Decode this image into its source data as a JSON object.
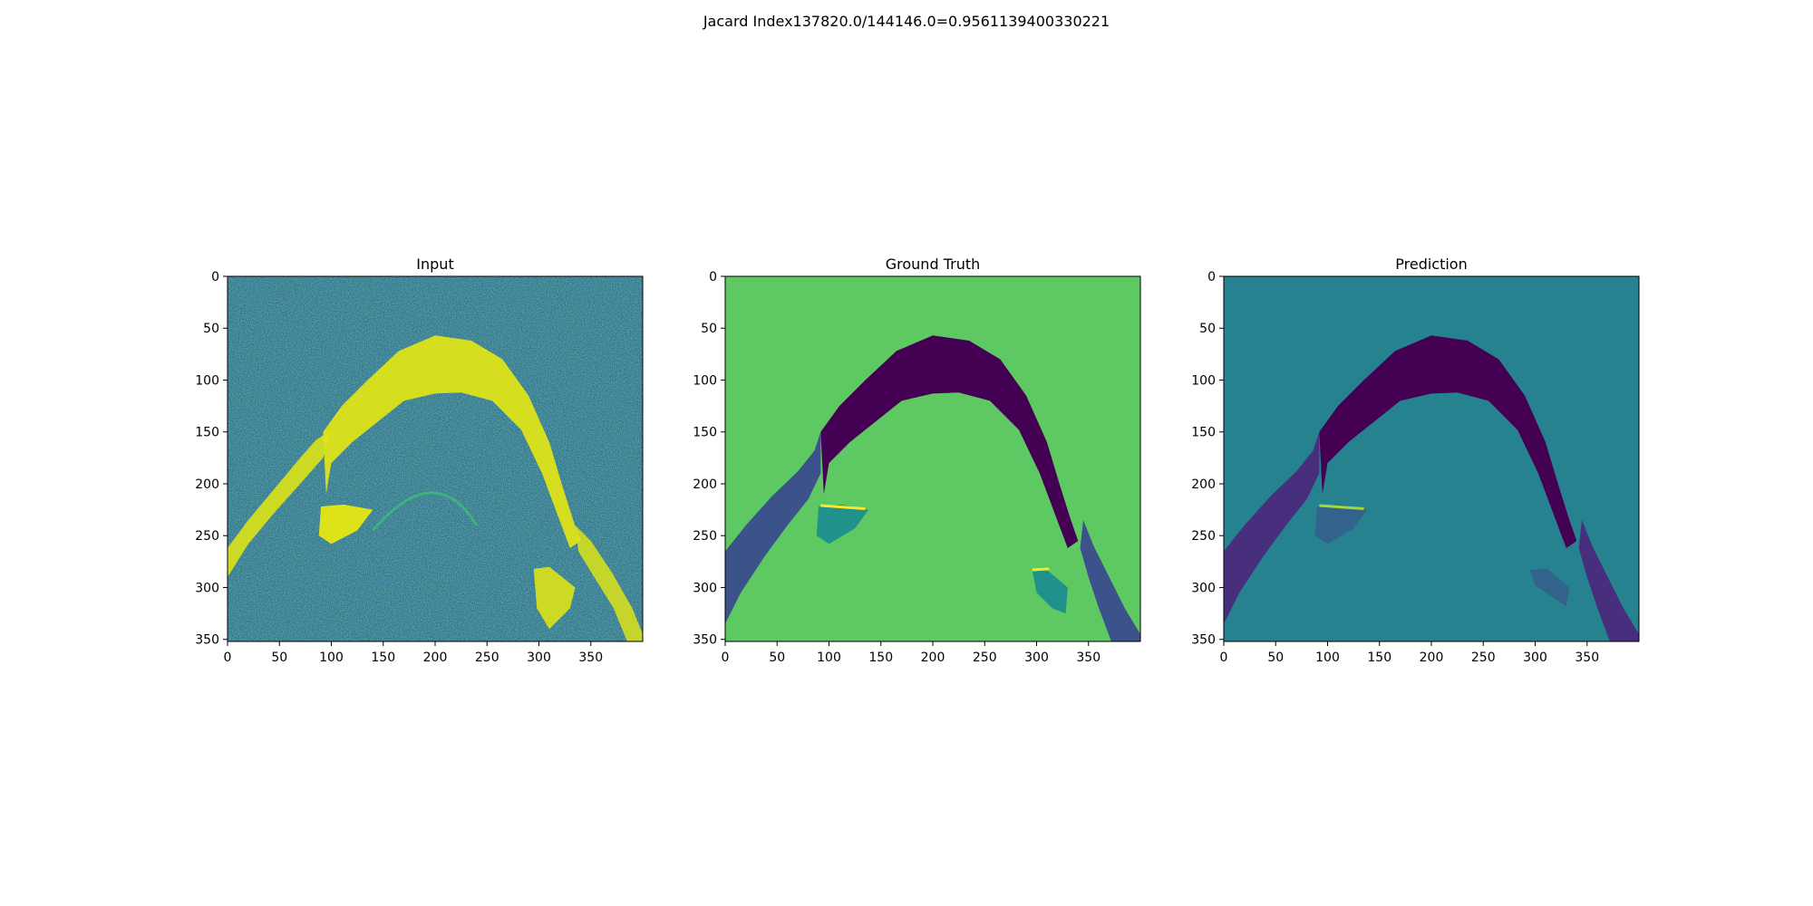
{
  "figure": {
    "suptitle": "Jacard Index137820.0/144146.0=0.9561139400330221"
  },
  "chart_data": [
    {
      "type": "heatmap",
      "title": "Input",
      "xticks": [
        0,
        50,
        100,
        150,
        200,
        250,
        300,
        350
      ],
      "yticks": [
        0,
        50,
        100,
        150,
        200,
        250,
        300,
        350
      ],
      "xlim": [
        0,
        400
      ],
      "ylim": [
        352,
        0
      ],
      "colormap": "viridis",
      "colors": {
        "background_noise": "#2f6e8c",
        "bright": "#dde318",
        "speckle_dark": "#3b528b",
        "speckle_light": "#3fbc73"
      }
    },
    {
      "type": "heatmap",
      "title": "Ground Truth",
      "xticks": [
        0,
        50,
        100,
        150,
        200,
        250,
        300,
        350
      ],
      "yticks": [
        0,
        50,
        100,
        150,
        200,
        250,
        300,
        350
      ],
      "xlim": [
        0,
        400
      ],
      "ylim": [
        352,
        0
      ],
      "colormap": "viridis",
      "colors": {
        "background": "#5ec962",
        "cornea": "#440154",
        "sclera": "#3b528b",
        "lens_region": "#21918c",
        "edge": "#fde725"
      }
    },
    {
      "type": "heatmap",
      "title": "Prediction",
      "xticks": [
        0,
        50,
        100,
        150,
        200,
        250,
        300,
        350
      ],
      "yticks": [
        0,
        50,
        100,
        150,
        200,
        250,
        300,
        350
      ],
      "xlim": [
        0,
        400
      ],
      "ylim": [
        352,
        0
      ],
      "colormap": "viridis",
      "colors": {
        "background": "#26828e",
        "cornea": "#440154",
        "sclera": "#472f7d",
        "lens_region": "#33638d",
        "edge": "#a0da39"
      }
    }
  ]
}
